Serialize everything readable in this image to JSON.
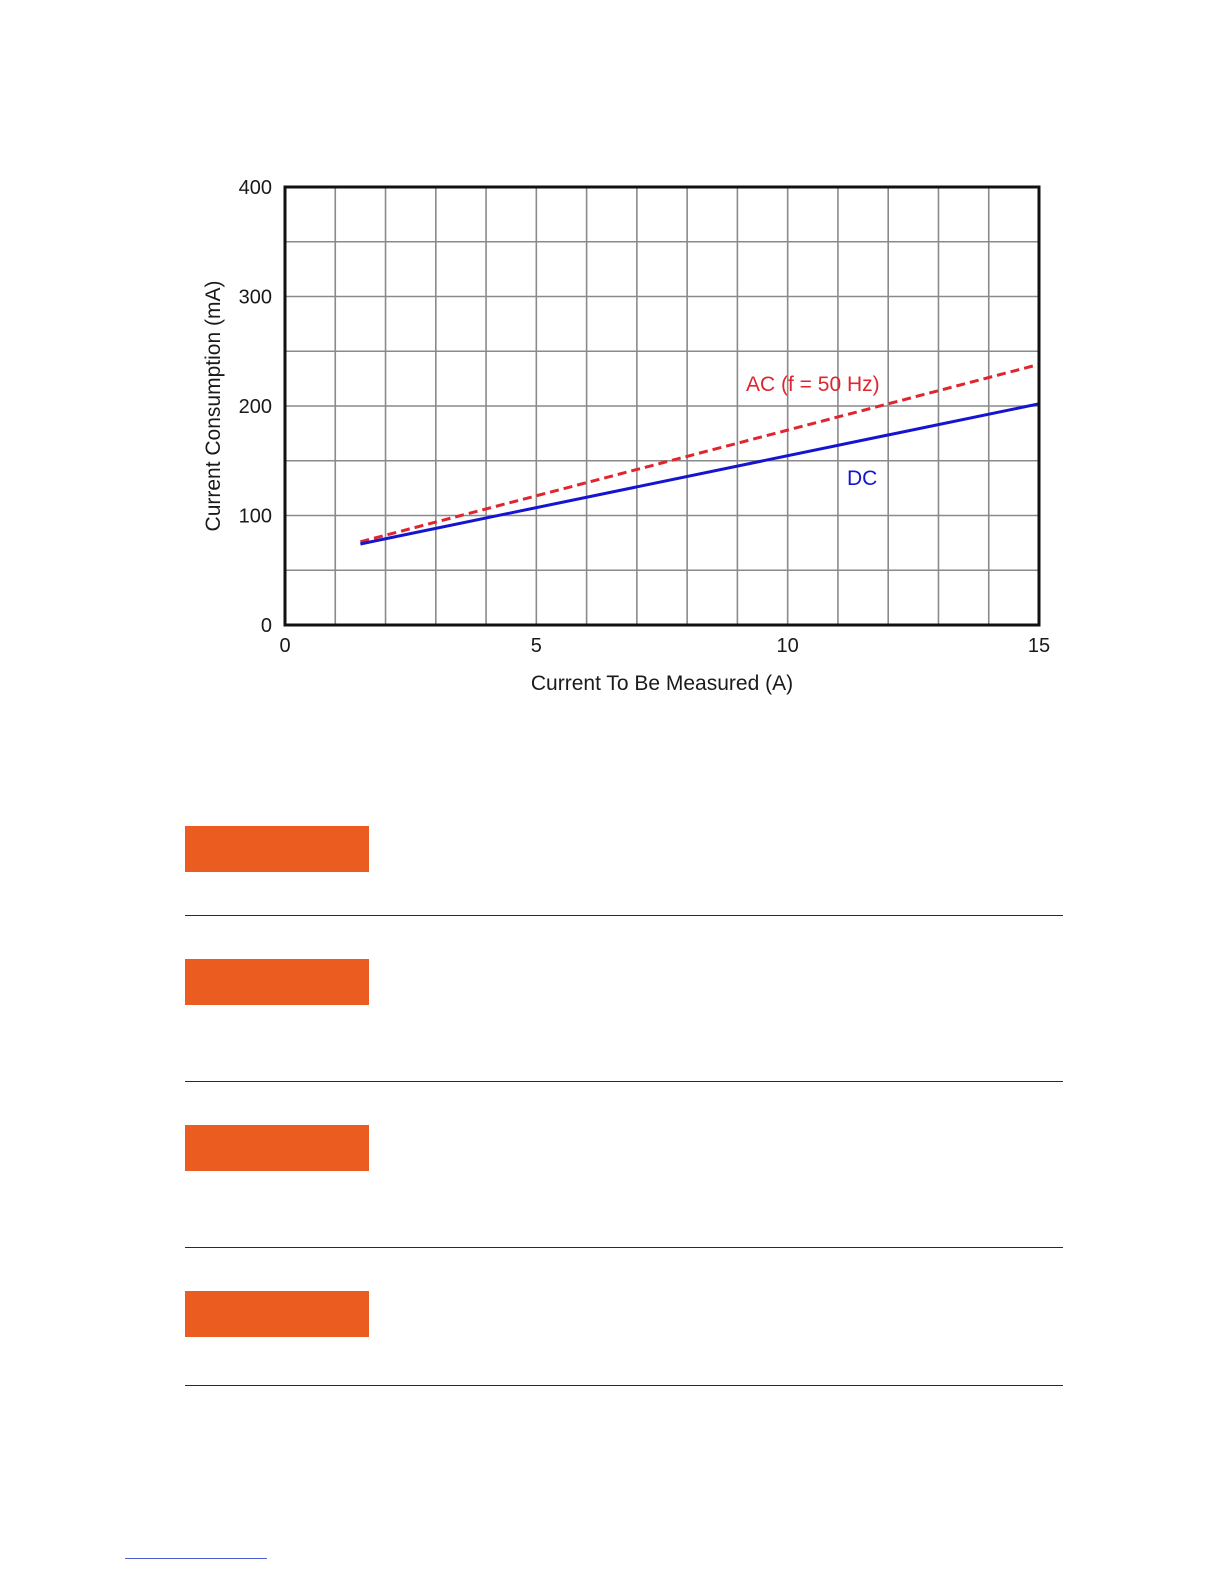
{
  "chart_data": {
    "type": "line",
    "xlabel": "Current To Be Measured (A)",
    "ylabel": "Current Consumption (mA)",
    "xlim": [
      0,
      15
    ],
    "ylim": [
      0,
      400
    ],
    "x_ticks": [
      "0",
      "5",
      "10",
      "15"
    ],
    "y_ticks": [
      "0",
      "100",
      "200",
      "300",
      "400"
    ],
    "grid": true,
    "series": [
      {
        "name": "AC (f = 50 Hz)",
        "style": "dashed",
        "color": "#e0252f",
        "x": [
          1.5,
          15
        ],
        "y": [
          76,
          238
        ]
      },
      {
        "name": "DC",
        "style": "solid",
        "color": "#1515d0",
        "x": [
          1.5,
          15
        ],
        "y": [
          74,
          202
        ]
      }
    ]
  },
  "notes": {
    "block_color": "#ea5c1f",
    "count": 4
  },
  "footer": {
    "rule_color": "#4a5bd4"
  }
}
